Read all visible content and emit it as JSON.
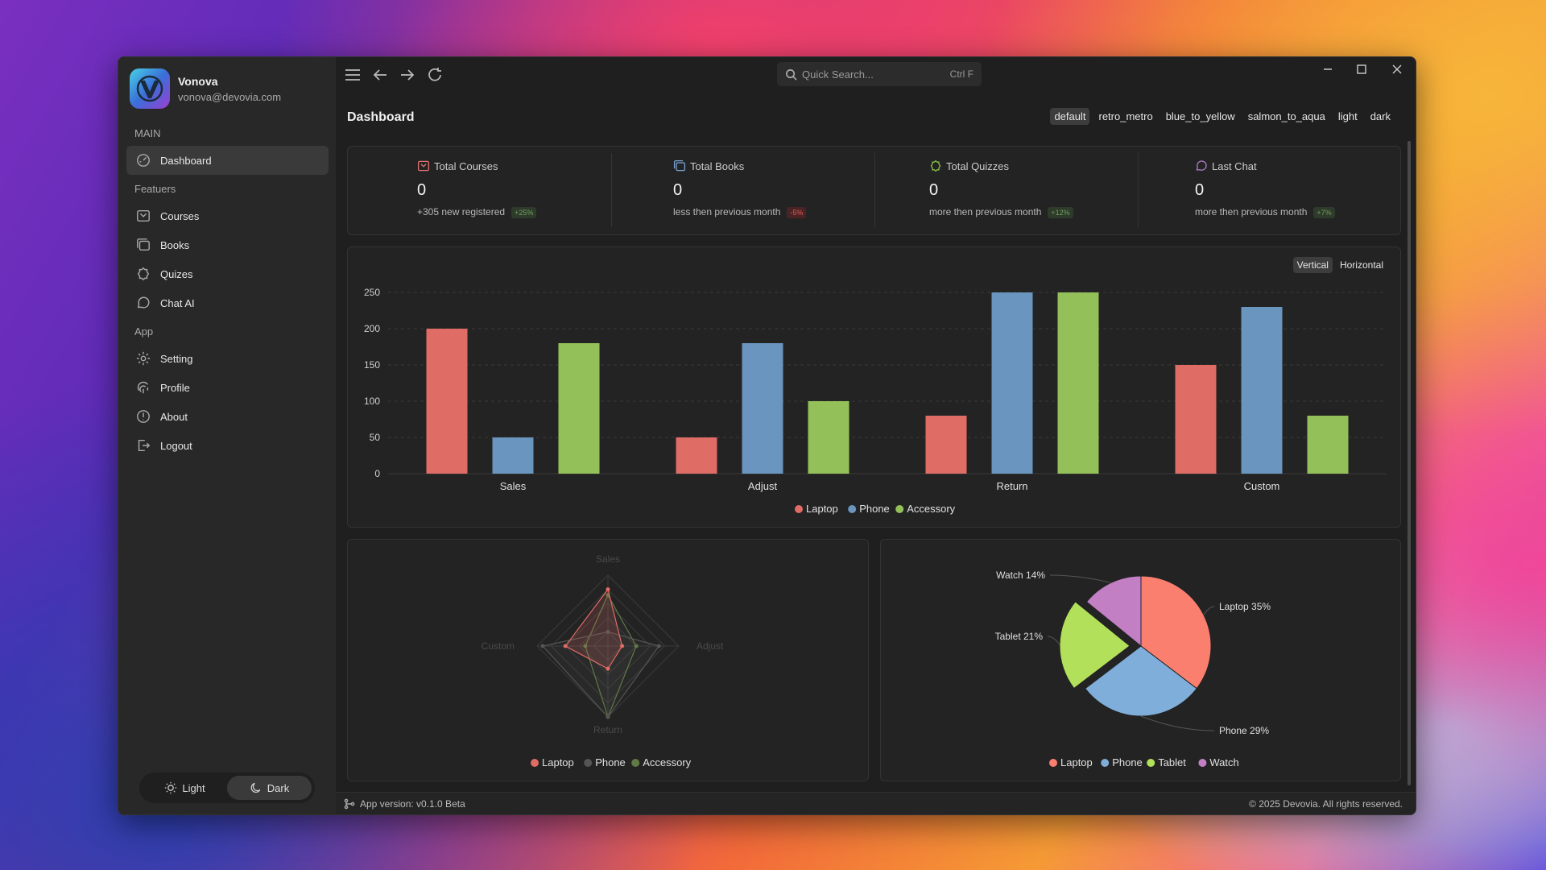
{
  "user": {
    "name": "Vonova",
    "email": "vonova@devovia.com"
  },
  "sidebar": {
    "sections": {
      "main": "MAIN",
      "features": "Featuers",
      "app": "App"
    },
    "items": [
      {
        "label": "Dashboard",
        "icon": "dashboard-icon",
        "active": true
      },
      {
        "label": "Courses",
        "icon": "courses-icon"
      },
      {
        "label": "Books",
        "icon": "books-icon"
      },
      {
        "label": "Quizes",
        "icon": "quizes-icon"
      },
      {
        "label": "Chat AI",
        "icon": "chat-icon"
      },
      {
        "label": "Setting",
        "icon": "gear-icon"
      },
      {
        "label": "Profile",
        "icon": "fingerprint-icon"
      },
      {
        "label": "About",
        "icon": "info-icon"
      },
      {
        "label": "Logout",
        "icon": "logout-icon"
      }
    ],
    "theme_toggle": {
      "light": "Light",
      "dark": "Dark",
      "selected": "Dark"
    }
  },
  "topbar": {
    "search_placeholder": "Quick Search...",
    "search_shortcut": "Ctrl F"
  },
  "page": {
    "title": "Dashboard",
    "themes": [
      "default",
      "retro_metro",
      "blue_to_yellow",
      "salmon_to_aqua",
      "light",
      "dark"
    ],
    "selected_theme": "default"
  },
  "stats": [
    {
      "label": "Total Courses",
      "value": "0",
      "sub": "+305 new registered",
      "badge": "+25%",
      "badge_color": "#6fa05f",
      "icon_color": "#e57373"
    },
    {
      "label": "Total Books",
      "value": "0",
      "sub": "less then previous month",
      "badge": "-5%",
      "badge_color": "#e05a5a",
      "icon_color": "#7aa6d6"
    },
    {
      "label": "Total Quizzes",
      "value": "0",
      "sub": "more then previous month",
      "badge": "+12%",
      "badge_color": "#6fa05f",
      "icon_color": "#8bc34a"
    },
    {
      "label": "Last Chat",
      "value": "0",
      "sub": "more then previous month",
      "badge": "+7%",
      "badge_color": "#6fa05f",
      "icon_color": "#b07fc9"
    }
  ],
  "bar_controls": {
    "options": [
      "Vertical",
      "Horizontal"
    ],
    "selected": "Vertical"
  },
  "colors": {
    "laptop": "#e06c66",
    "phone": "#6a95bf",
    "accessory": "#94c05a",
    "tablet": "#b3e05a",
    "watch": "#c27fc4",
    "pie_laptop": "#fb7f6e",
    "pie_phone": "#7eaed9"
  },
  "chart_data": [
    {
      "type": "bar",
      "categories": [
        "Sales",
        "Adjust",
        "Return",
        "Custom"
      ],
      "series": [
        {
          "name": "Laptop",
          "values": [
            200,
            50,
            80,
            150
          ]
        },
        {
          "name": "Phone",
          "values": [
            50,
            180,
            250,
            230
          ]
        },
        {
          "name": "Accessory",
          "values": [
            180,
            100,
            250,
            80
          ]
        }
      ],
      "ylim": [
        0,
        250
      ],
      "yticks": [
        0,
        50,
        100,
        150,
        200,
        250
      ],
      "grid": true,
      "legend": "bottom"
    },
    {
      "type": "radar",
      "axes": [
        "Sales",
        "Adjust",
        "Return",
        "Custom"
      ],
      "series": [
        {
          "name": "Laptop",
          "values": [
            200,
            50,
            80,
            150
          ]
        },
        {
          "name": "Phone",
          "values": [
            50,
            180,
            250,
            230
          ]
        },
        {
          "name": "Accessory",
          "values": [
            180,
            100,
            250,
            80
          ]
        }
      ],
      "legend": "bottom"
    },
    {
      "type": "pie",
      "slices": [
        {
          "name": "Laptop",
          "value": 35,
          "label": "Laptop 35%"
        },
        {
          "name": "Phone",
          "value": 29,
          "label": "Phone 29%"
        },
        {
          "name": "Tablet",
          "value": 21,
          "label": "Tablet 21%",
          "exploded": true
        },
        {
          "name": "Watch",
          "value": 14,
          "label": "Watch 14%"
        }
      ],
      "legend": "bottom"
    }
  ],
  "footer": {
    "version": "App version: v0.1.0 Beta",
    "copyright": "© 2025 Devovia. All rights reserved."
  }
}
